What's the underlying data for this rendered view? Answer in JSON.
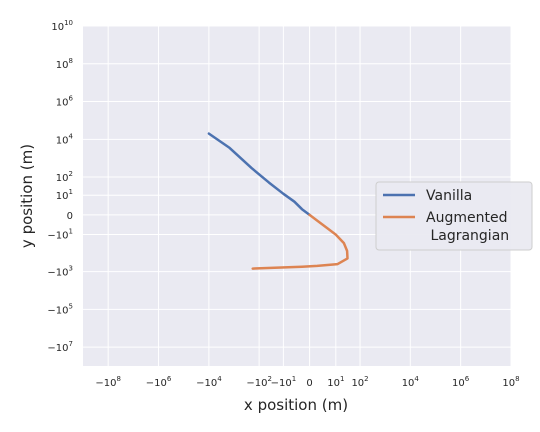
{
  "chart_data": {
    "type": "line",
    "xlabel": "x position (m)",
    "ylabel": "y position (m)",
    "xscale": "symlog",
    "yscale": "symlog",
    "xlim": [
      -1000000000.0,
      100000000.0
    ],
    "ylim": [
      -100000000.0,
      10000000000.0
    ],
    "grid": true,
    "legend_position": "right",
    "x_ticks": [
      {
        "value": -100000000.0,
        "label": "−10",
        "exp": "8"
      },
      {
        "value": -1000000.0,
        "label": "−10",
        "exp": "6"
      },
      {
        "value": -10000.0,
        "label": "−10",
        "exp": "4"
      },
      {
        "value": -100,
        "label": "−10",
        "exp": "2"
      },
      {
        "value": -10,
        "label": "−10",
        "exp": "1"
      },
      {
        "value": 0,
        "label": "0",
        "exp": ""
      },
      {
        "value": 10,
        "label": "10",
        "exp": "1"
      },
      {
        "value": 100,
        "label": "10",
        "exp": "2"
      },
      {
        "value": 10000.0,
        "label": "10",
        "exp": "4"
      },
      {
        "value": 1000000.0,
        "label": "10",
        "exp": "6"
      },
      {
        "value": 100000000.0,
        "label": "10",
        "exp": "8"
      }
    ],
    "y_ticks": [
      {
        "value": 10000000000.0,
        "label": "10",
        "exp": "10"
      },
      {
        "value": 100000000.0,
        "label": "10",
        "exp": "8"
      },
      {
        "value": 1000000.0,
        "label": "10",
        "exp": "6"
      },
      {
        "value": 10000.0,
        "label": "10",
        "exp": "4"
      },
      {
        "value": 100,
        "label": "10",
        "exp": "2"
      },
      {
        "value": 10,
        "label": "10",
        "exp": "1"
      },
      {
        "value": 0,
        "label": "0",
        "exp": ""
      },
      {
        "value": -10,
        "label": "−10",
        "exp": "1"
      },
      {
        "value": -1000,
        "label": "−10",
        "exp": "3"
      },
      {
        "value": -100000.0,
        "label": "−10",
        "exp": "5"
      },
      {
        "value": -10000000.0,
        "label": "−10",
        "exp": "7"
      }
    ],
    "series": [
      {
        "name": "Vanilla",
        "color": "#4c72b0",
        "points": [
          [
            0,
            0
          ],
          [
            -1,
            1
          ],
          [
            -3,
            4
          ],
          [
            -10,
            12
          ],
          [
            -40,
            50
          ],
          [
            -200,
            300
          ],
          [
            -1500,
            3500
          ],
          [
            -10000,
            20000
          ]
        ]
      },
      {
        "name": "Augmented\n Lagrangian",
        "color": "#dd8452",
        "points": [
          [
            0,
            0
          ],
          [
            1,
            -1
          ],
          [
            4,
            -4
          ],
          [
            10,
            -10
          ],
          [
            22,
            -30
          ],
          [
            30,
            -80
          ],
          [
            31,
            -200
          ],
          [
            12,
            -400
          ],
          [
            1,
            -500
          ],
          [
            -1,
            -550
          ],
          [
            -180,
            -700
          ]
        ]
      }
    ]
  }
}
